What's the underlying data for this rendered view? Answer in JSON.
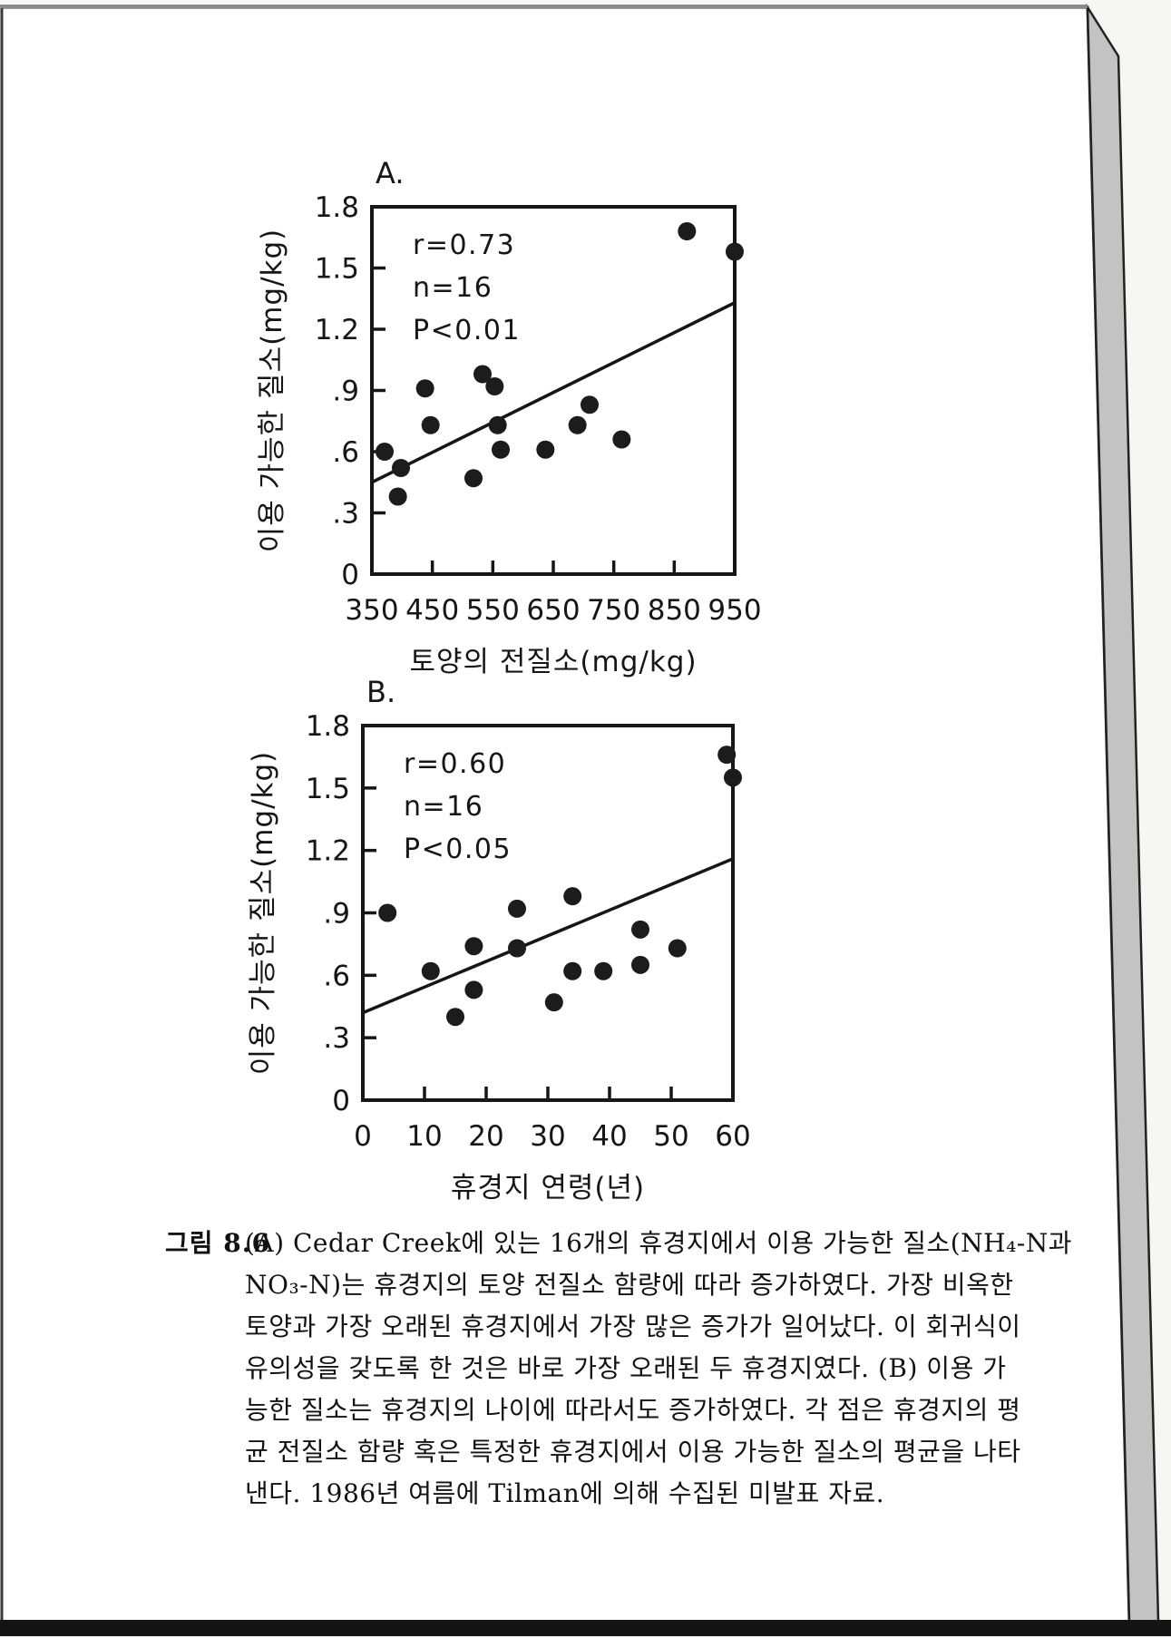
{
  "page": {
    "kind": "scanned book page with figure 8.6",
    "background_color": "#f6f6f4",
    "page_color": "#ffffff",
    "ink_color": "#161616",
    "page_edge_color": "#c3c3c3",
    "bottom_band_color": "#141414"
  },
  "figure_caption": {
    "label": "그림 8.6",
    "lines": [
      "(A) Cedar Creek에 있는 16개의 휴경지에서 이용 가능한 질소(NH₄-N과",
      "NO₃-N)는 휴경지의 토양 전질소 함량에 따라 증가하였다. 가장 비옥한",
      "토양과 가장 오래된 휴경지에서 가장 많은 증가가 일어났다. 이 회귀식이",
      "유의성을 갖도록 한 것은 바로 가장 오래된 두 휴경지였다. (B) 이용 가",
      "능한 질소는 휴경지의 나이에 따라서도 증가하였다. 각 점은 휴경지의 평",
      "균 전질소 함량 혹은 특정한 휴경지에서 이용 가능한 질소의 평균을 나타",
      "낸다. 1986년 여름에 Tilman에 의해 수집된 미발표 자료."
    ]
  },
  "chart_data": [
    {
      "id": "A",
      "type": "scatter",
      "panel_label": "A.",
      "stats_annotation": [
        "r=0.73",
        "n=16",
        "P<0.01"
      ],
      "xlabel": "토양의 전질소(mg/kg)",
      "ylabel": "이용 가능한 질소(mg/kg)",
      "xlim": [
        350,
        950
      ],
      "ylim": [
        0,
        1.8
      ],
      "grid": false,
      "legend": "none",
      "x_ticks": {
        "values": [
          350,
          450,
          550,
          650,
          750,
          850,
          950
        ],
        "labels": [
          "350",
          "450",
          "550",
          "650",
          "750",
          "850",
          "950"
        ]
      },
      "y_ticks": {
        "values": [
          0,
          0.3,
          0.6,
          0.9,
          1.2,
          1.5,
          1.8
        ],
        "labels": [
          "0",
          ".3",
          ".6",
          ".9",
          "1.2",
          "1.5",
          "1.8"
        ]
      },
      "marker_color": "#1c1c1c",
      "points": [
        [
          371,
          0.6
        ],
        [
          398,
          0.52
        ],
        [
          393,
          0.38
        ],
        [
          438,
          0.91
        ],
        [
          447,
          0.73
        ],
        [
          518,
          0.47
        ],
        [
          533,
          0.98
        ],
        [
          553,
          0.92
        ],
        [
          558,
          0.73
        ],
        [
          563,
          0.61
        ],
        [
          637,
          0.61
        ],
        [
          690,
          0.73
        ],
        [
          710,
          0.83
        ],
        [
          763,
          0.66
        ],
        [
          871,
          1.68
        ],
        [
          950,
          1.58
        ]
      ],
      "regression_line": {
        "x": [
          350,
          950
        ],
        "y": [
          0.45,
          1.33
        ]
      }
    },
    {
      "id": "B",
      "type": "scatter",
      "panel_label": "B.",
      "stats_annotation": [
        "r=0.60",
        "n=16",
        "P<0.05"
      ],
      "xlabel": "휴경지 연령(년)",
      "ylabel": "이용 가능한 질소(mg/kg)",
      "xlim": [
        0,
        60
      ],
      "ylim": [
        0,
        1.8
      ],
      "grid": false,
      "legend": "none",
      "x_ticks": {
        "values": [
          0,
          10,
          20,
          30,
          40,
          50,
          60
        ],
        "labels": [
          "0",
          "10",
          "20",
          "30",
          "40",
          "50",
          "60"
        ]
      },
      "y_ticks": {
        "values": [
          0,
          0.3,
          0.6,
          0.9,
          1.2,
          1.5,
          1.8
        ],
        "labels": [
          "0",
          ".3",
          ".6",
          ".9",
          "1.2",
          "1.5",
          "1.8"
        ]
      },
      "marker_color": "#1c1c1c",
      "points": [
        [
          4,
          0.9
        ],
        [
          11,
          0.62
        ],
        [
          15,
          0.4
        ],
        [
          18,
          0.74
        ],
        [
          18,
          0.53
        ],
        [
          25,
          0.92
        ],
        [
          25,
          0.73
        ],
        [
          31,
          0.47
        ],
        [
          34,
          0.98
        ],
        [
          34,
          0.62
        ],
        [
          39,
          0.62
        ],
        [
          45,
          0.82
        ],
        [
          45,
          0.65
        ],
        [
          51,
          0.73
        ],
        [
          59,
          1.66
        ],
        [
          60,
          1.55
        ]
      ],
      "regression_line": {
        "x": [
          0,
          60
        ],
        "y": [
          0.42,
          1.16
        ]
      }
    }
  ]
}
